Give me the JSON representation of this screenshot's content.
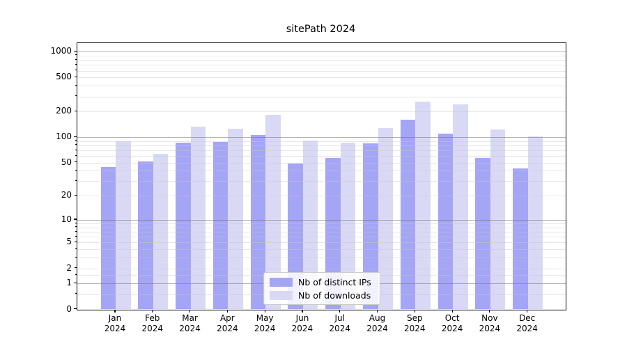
{
  "title": "sitePath 2024",
  "chart_data": {
    "type": "bar",
    "title": "sitePath 2024",
    "xlabel": "",
    "ylabel": "",
    "yscale": "log(value+1)",
    "ylim": [
      0,
      1276
    ],
    "grid": true,
    "legend_position": "lower center",
    "ytick_labels": [
      1000,
      500,
      200,
      100,
      50,
      20,
      10,
      5,
      2,
      1,
      0
    ],
    "ymajor_gridlines": [
      1000,
      100,
      10,
      1
    ],
    "yminor_gridlines": [
      900,
      800,
      700,
      600,
      500,
      400,
      300,
      200,
      90,
      80,
      70,
      60,
      50,
      40,
      30,
      20,
      9,
      8,
      7,
      6,
      5,
      4,
      3,
      2,
      1.5,
      0.5
    ],
    "categories": [
      "Jan 2024",
      "Feb 2024",
      "Mar 2024",
      "Apr 2024",
      "May 2024",
      "Jun 2024",
      "Jul 2024",
      "Aug 2024",
      "Sep 2024",
      "Oct 2024",
      "Nov 2024",
      "Dec 2024"
    ],
    "month_labels": [
      "Jan",
      "Feb",
      "Mar",
      "Apr",
      "May",
      "Jun",
      "Jul",
      "Aug",
      "Sep",
      "Oct",
      "Nov",
      "Dec"
    ],
    "year_label": "2024",
    "series": [
      {
        "name": "Nb of distinct IPs",
        "color": "#a5a5f6",
        "values": [
          44,
          52,
          87,
          88,
          107,
          49,
          57,
          85,
          161,
          110,
          57,
          43
        ]
      },
      {
        "name": "Nb of downloads",
        "color": "#d9d9f6",
        "values": [
          90,
          64,
          132,
          125,
          184,
          91,
          87,
          127,
          261,
          241,
          124,
          103
        ]
      }
    ]
  },
  "colors": {
    "background": "#ffffff",
    "bar_ips": "#a5a5f6",
    "bar_downloads": "#d9d9f6",
    "grid_major": "rgba(120,120,120,0.55)",
    "grid_minor": "rgba(200,200,200,0.45)",
    "axis_line": "#000000",
    "text": "#000000",
    "legend_border": "#cccccc"
  }
}
